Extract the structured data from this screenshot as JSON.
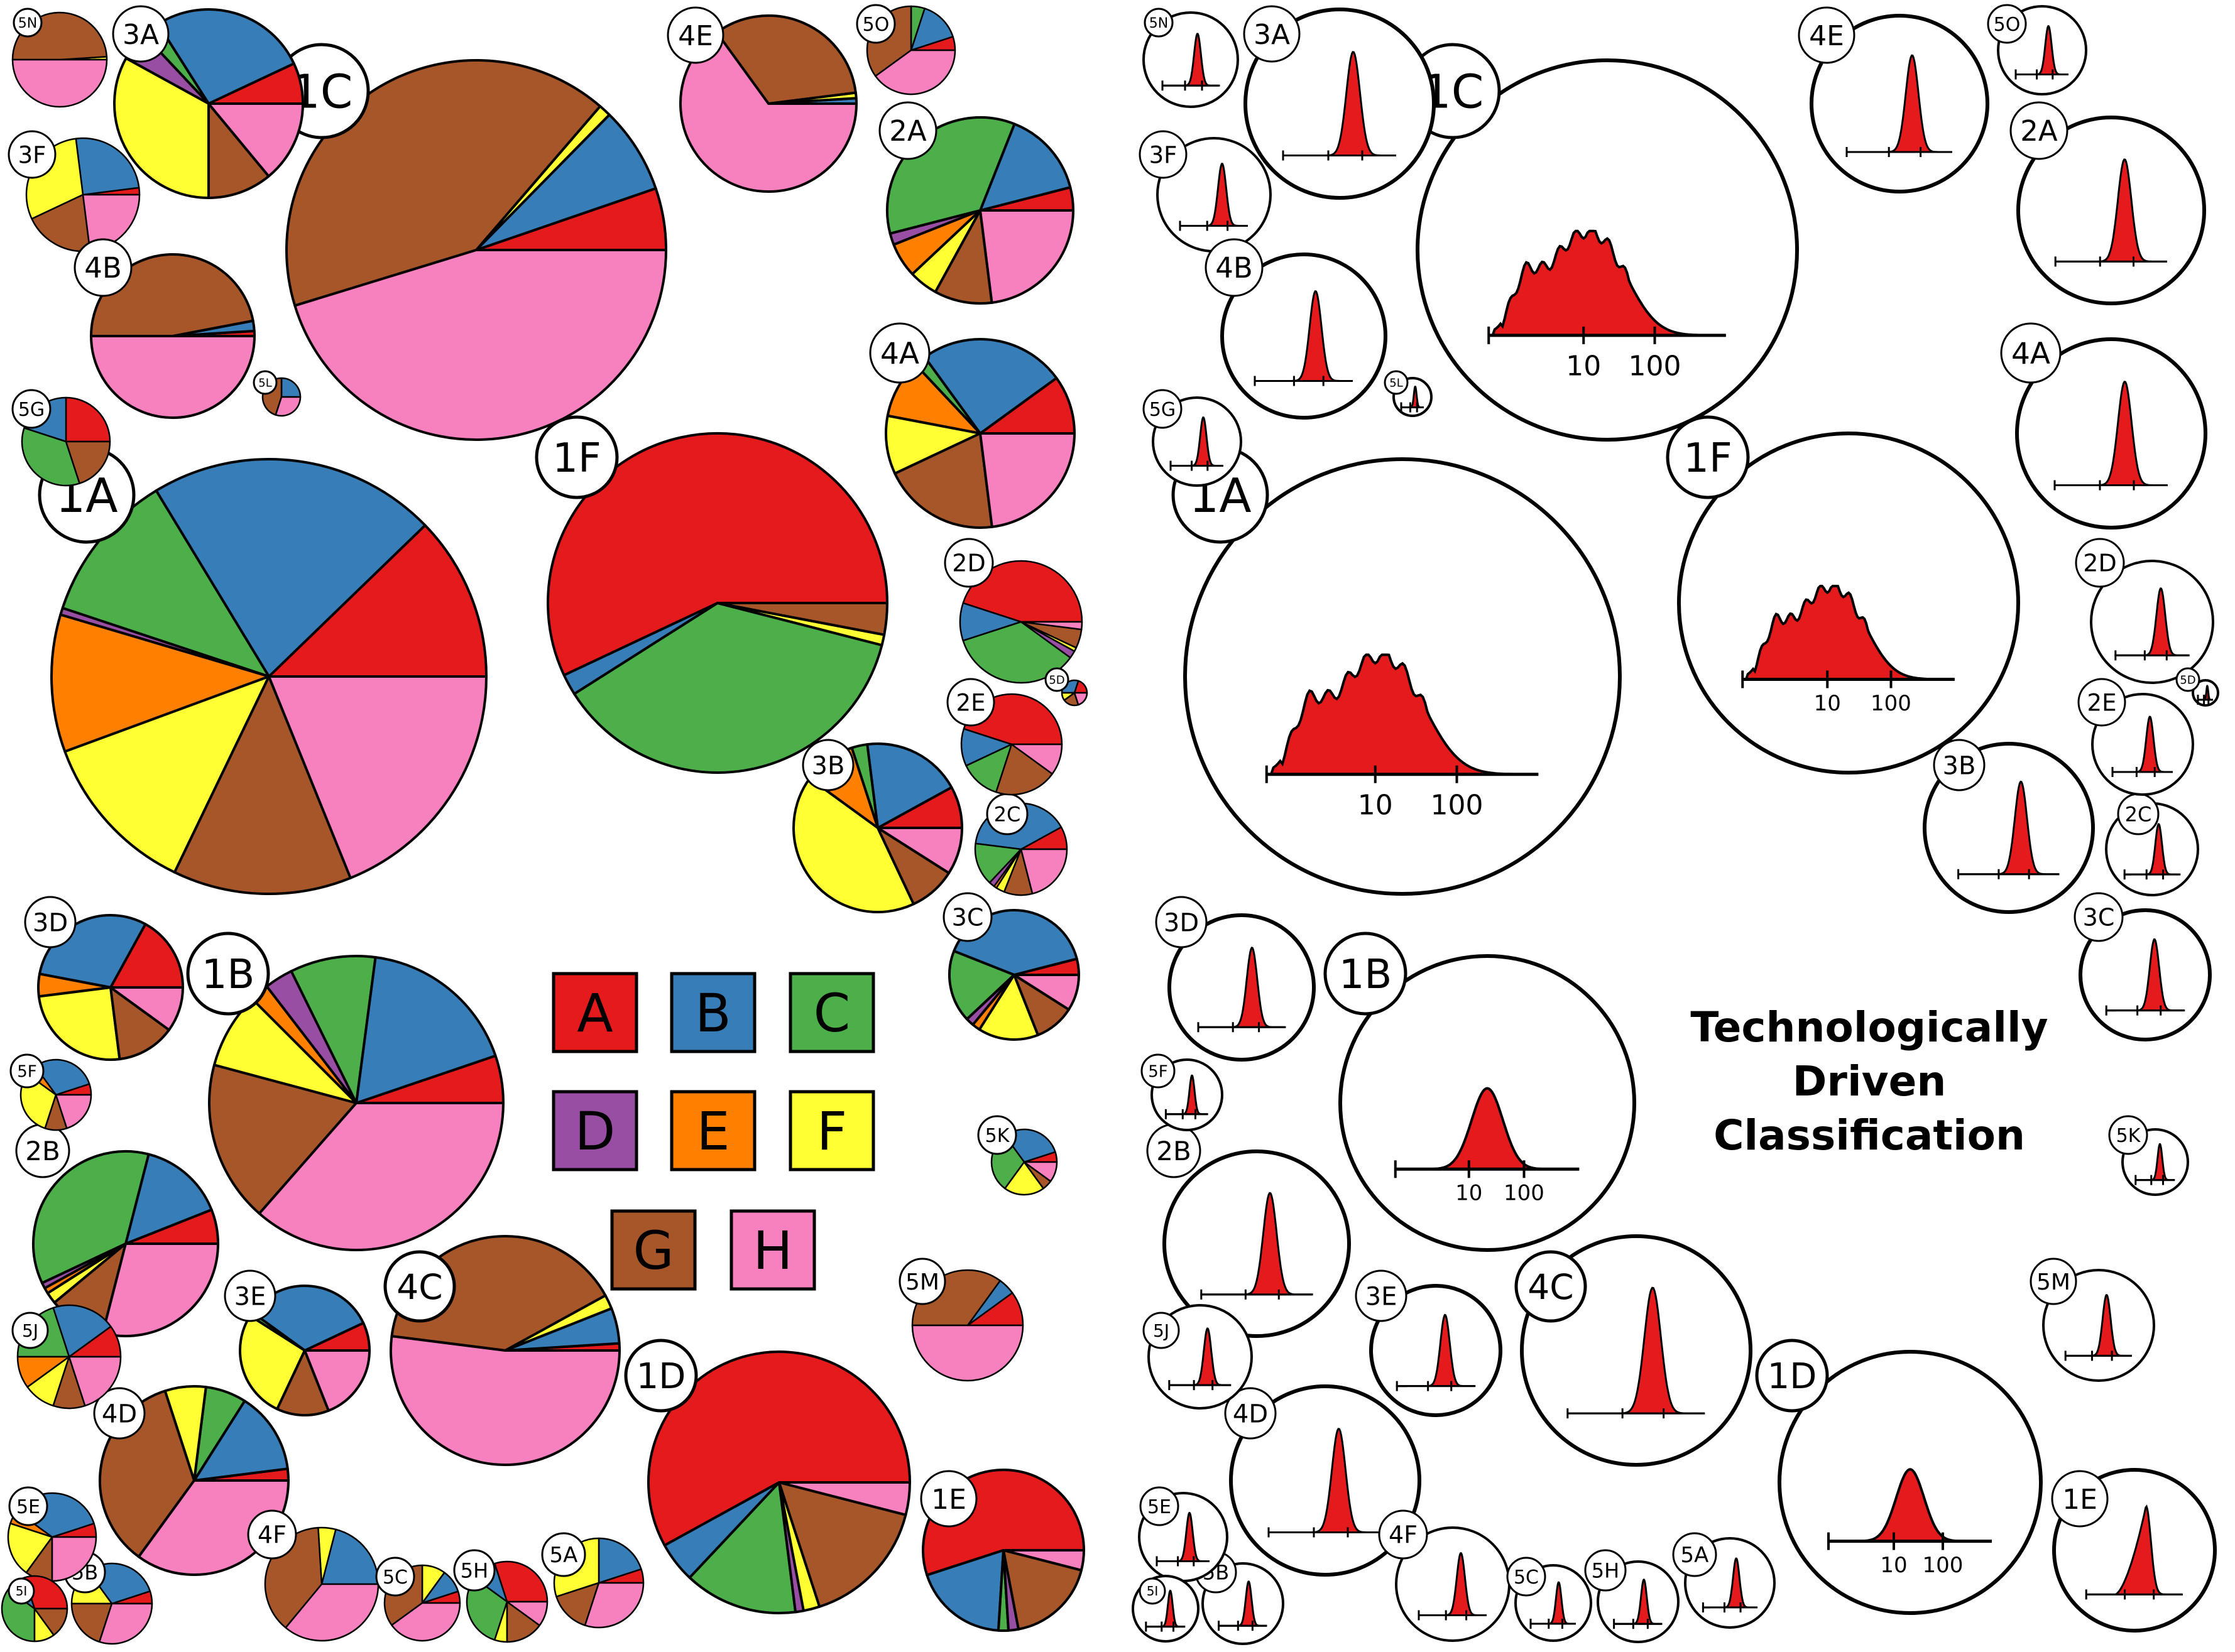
{
  "title": [
    "Technologically",
    "Driven",
    "Classification"
  ],
  "palette": {
    "A": "#e41a1c",
    "B": "#377eb8",
    "C": "#4daf4a",
    "D": "#984ea3",
    "E": "#ff7f00",
    "F": "#ffff33",
    "G": "#a65628",
    "H": "#f781bf"
  },
  "legend": [
    "A",
    "B",
    "C",
    "D",
    "E",
    "F",
    "G",
    "H"
  ],
  "hist_fill": "#e41a1c",
  "axis_ticks": [
    "10",
    "100"
  ],
  "order": [
    "A",
    "B",
    "C",
    "D",
    "E",
    "F",
    "G",
    "H"
  ],
  "nodes": [
    {
      "id": "1A",
      "pie": [
        0.12,
        0.21,
        0.11,
        0.005,
        0.1,
        0.12,
        0.13,
        0.185
      ],
      "hist": "broad"
    },
    {
      "id": "1B",
      "pie": [
        0.05,
        0.17,
        0.09,
        0.03,
        0.02,
        0.08,
        0.17,
        0.35
      ],
      "hist": "narrow"
    },
    {
      "id": "1C",
      "pie": [
        0.05,
        0.07,
        0,
        0,
        0,
        0.01,
        0.39,
        0.43
      ],
      "hist": "broad"
    },
    {
      "id": "1D",
      "pie": [
        0.58,
        0.05,
        0.14,
        0.01,
        0,
        0.02,
        0.16,
        0.04
      ],
      "hist": "narrow"
    },
    {
      "id": "1E",
      "pie": [
        0.55,
        0.19,
        0.02,
        0.02,
        0,
        0,
        0.18,
        0.04
      ],
      "hist": "skew"
    },
    {
      "id": "1F",
      "pie": [
        0.57,
        0.02,
        0.37,
        0,
        0,
        0.01,
        0.03,
        0
      ],
      "hist": "broad"
    },
    {
      "id": "2A",
      "pie": [
        0.04,
        0.15,
        0.35,
        0.02,
        0.06,
        0.05,
        0.1,
        0.23
      ],
      "hist": "narrow"
    },
    {
      "id": "2B",
      "pie": [
        0.06,
        0.15,
        0.36,
        0.01,
        0.01,
        0.02,
        0.1,
        0.29
      ],
      "hist": "narrow"
    },
    {
      "id": "2C",
      "pie": [
        0.08,
        0.4,
        0.15,
        0.02,
        0.01,
        0.03,
        0.1,
        0.21
      ],
      "hist": "narrow"
    },
    {
      "id": "2D",
      "pie": [
        0.45,
        0.1,
        0.35,
        0.02,
        0,
        0.01,
        0.05,
        0.02
      ],
      "hist": "narrow"
    },
    {
      "id": "2E",
      "pie": [
        0.45,
        0.12,
        0.13,
        0,
        0,
        0,
        0.2,
        0.1
      ],
      "hist": "narrow"
    },
    {
      "id": "3A",
      "pie": [
        0.07,
        0.27,
        0.03,
        0.05,
        0,
        0.33,
        0.11,
        0.14
      ],
      "hist": "narrow"
    },
    {
      "id": "3B",
      "pie": [
        0.08,
        0.19,
        0.03,
        0,
        0.1,
        0.42,
        0.09,
        0.09
      ],
      "hist": "narrow"
    },
    {
      "id": "3C",
      "pie": [
        0.04,
        0.4,
        0.18,
        0.02,
        0.02,
        0.15,
        0.1,
        0.09
      ],
      "hist": "narrow"
    },
    {
      "id": "3D",
      "pie": [
        0.17,
        0.3,
        0,
        0,
        0.05,
        0.25,
        0.13,
        0.1
      ],
      "hist": "narrow"
    },
    {
      "id": "3E",
      "pie": [
        0.07,
        0.33,
        0.01,
        0,
        0,
        0.27,
        0.13,
        0.19
      ],
      "hist": "narrow"
    },
    {
      "id": "3F",
      "pie": [
        0.02,
        0.25,
        0,
        0,
        0,
        0.3,
        0.2,
        0.23
      ],
      "hist": "narrow"
    },
    {
      "id": "4A",
      "pie": [
        0.1,
        0.25,
        0.02,
        0,
        0.1,
        0.1,
        0.2,
        0.23
      ],
      "hist": "narrow"
    },
    {
      "id": "4B",
      "pie": [
        0.01,
        0.02,
        0,
        0,
        0,
        0,
        0.47,
        0.5
      ],
      "hist": "narrow"
    },
    {
      "id": "4C",
      "pie": [
        0.01,
        0.05,
        0,
        0,
        0,
        0.02,
        0.4,
        0.52
      ],
      "hist": "narrow"
    },
    {
      "id": "4D",
      "pie": [
        0.02,
        0.14,
        0.07,
        0,
        0,
        0.07,
        0.35,
        0.35
      ],
      "hist": "narrow"
    },
    {
      "id": "4E",
      "pie": [
        0,
        0.01,
        0,
        0,
        0,
        0.01,
        0.33,
        0.65
      ],
      "hist": "narrow"
    },
    {
      "id": "4F",
      "pie": [
        0,
        0.21,
        0,
        0,
        0,
        0.05,
        0.38,
        0.36
      ],
      "hist": "narrow"
    },
    {
      "id": "5A",
      "pie": [
        0.05,
        0.2,
        0,
        0,
        0,
        0.3,
        0.15,
        0.3
      ],
      "hist": "narrow"
    },
    {
      "id": "5B",
      "pie": [
        0.05,
        0.3,
        0,
        0,
        0,
        0.15,
        0.2,
        0.3
      ],
      "hist": "narrow"
    },
    {
      "id": "5C",
      "pie": [
        0.05,
        0.1,
        0,
        0,
        0,
        0.1,
        0.35,
        0.4
      ],
      "hist": "narrow"
    },
    {
      "id": "5D",
      "pie": [
        0.2,
        0.3,
        0,
        0,
        0,
        0.1,
        0.2,
        0.2
      ],
      "hist": "narrow"
    },
    {
      "id": "5E",
      "pie": [
        0.05,
        0.35,
        0,
        0,
        0.05,
        0.2,
        0.1,
        0.25
      ],
      "hist": "narrow"
    },
    {
      "id": "5F",
      "pie": [
        0.05,
        0.3,
        0,
        0,
        0.05,
        0.3,
        0.1,
        0.2
      ],
      "hist": "narrow"
    },
    {
      "id": "5G",
      "pie": [
        0.25,
        0.2,
        0.35,
        0,
        0,
        0,
        0.2,
        0
      ],
      "hist": "narrow"
    },
    {
      "id": "5H",
      "pie": [
        0.3,
        0.1,
        0.3,
        0,
        0,
        0.05,
        0.15,
        0.1
      ],
      "hist": "narrow"
    },
    {
      "id": "5I",
      "pie": [
        0.3,
        0.1,
        0.35,
        0,
        0,
        0.1,
        0.15,
        0
      ],
      "hist": "narrow"
    },
    {
      "id": "5J",
      "pie": [
        0.1,
        0.2,
        0.2,
        0,
        0.1,
        0.1,
        0.1,
        0.2
      ],
      "hist": "narrow"
    },
    {
      "id": "5K",
      "pie": [
        0.05,
        0.3,
        0.3,
        0,
        0,
        0.2,
        0.05,
        0.1
      ],
      "hist": "narrow"
    },
    {
      "id": "5L",
      "pie": [
        0,
        0.25,
        0,
        0,
        0,
        0,
        0.45,
        0.3
      ],
      "hist": "narrow"
    },
    {
      "id": "5M",
      "pie": [
        0.1,
        0.05,
        0,
        0,
        0,
        0,
        0.35,
        0.5
      ],
      "hist": "narrow"
    },
    {
      "id": "5N",
      "pie": [
        0,
        0,
        0,
        0,
        0,
        0.01,
        0.49,
        0.5
      ],
      "hist": "narrow"
    },
    {
      "id": "5O",
      "pie": [
        0.05,
        0.15,
        0.05,
        0,
        0,
        0,
        0.35,
        0.4
      ],
      "hist": "narrow"
    }
  ]
}
